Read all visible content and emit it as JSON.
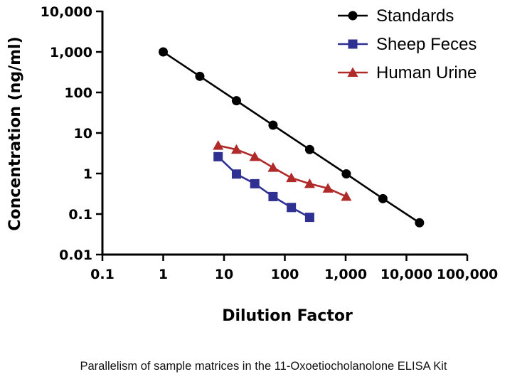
{
  "caption": "Parallelism of sample matrices in the 11-Oxoetiocholanolone ELISA Kit",
  "chart_data": {
    "type": "line",
    "xlabel": "Dilution Factor",
    "ylabel": "Concentration (ng/ml)",
    "xscale": "log",
    "yscale": "log",
    "xlim": [
      0.1,
      100000
    ],
    "ylim": [
      0.01,
      10000
    ],
    "xticks": [
      0.1,
      1,
      10,
      100,
      1000,
      10000,
      100000
    ],
    "xtick_labels": [
      "0.1",
      "1",
      "10",
      "100",
      "1,000",
      "10,000",
      "100,000"
    ],
    "yticks": [
      0.01,
      0.1,
      1,
      10,
      100,
      1000,
      10000
    ],
    "ytick_labels": [
      "0.01",
      "0.1",
      "1",
      "10",
      "100",
      "1,000",
      "10,000"
    ],
    "grid": false,
    "legend_position": "top-right",
    "series": [
      {
        "name": "Standards",
        "color": "#000000",
        "marker": "circle",
        "x": [
          1,
          4,
          16,
          64,
          256,
          1024,
          4096,
          16384
        ],
        "y": [
          1000,
          250,
          62.5,
          15.6,
          3.9,
          0.98,
          0.24,
          0.061
        ]
      },
      {
        "name": "Sheep Feces",
        "color": "#2E3192",
        "marker": "square",
        "x": [
          8,
          16,
          32,
          64,
          128,
          256
        ],
        "y": [
          2.6,
          0.97,
          0.56,
          0.27,
          0.145,
          0.083
        ]
      },
      {
        "name": "Human Urine",
        "color": "#B02A2A",
        "marker": "triangle",
        "x": [
          8,
          16,
          32,
          64,
          128,
          256,
          512,
          1024
        ],
        "y": [
          4.9,
          3.9,
          2.6,
          1.4,
          0.78,
          0.56,
          0.43,
          0.27
        ]
      }
    ]
  }
}
